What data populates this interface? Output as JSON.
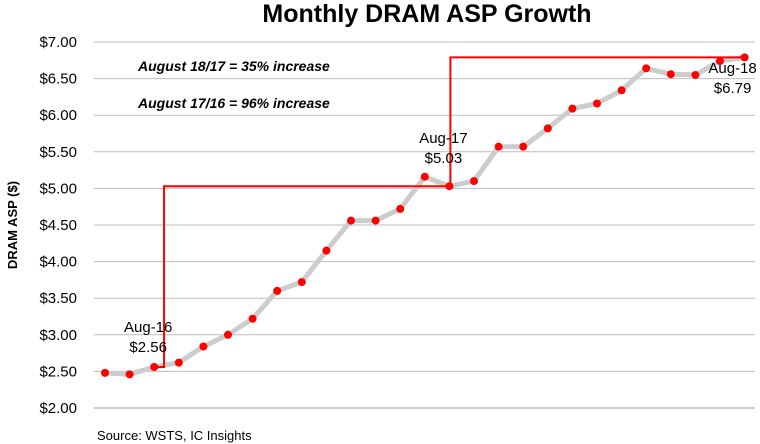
{
  "chart_data": {
    "type": "line",
    "title": "Monthly DRAM ASP Growth",
    "ylabel": "DRAM ASP ($)",
    "xlabel": "",
    "ylim": [
      2.0,
      7.0
    ],
    "yticks": [
      "$2.00",
      "$2.50",
      "$3.00",
      "$3.50",
      "$4.00",
      "$4.50",
      "$5.00",
      "$5.50",
      "$6.00",
      "$6.50",
      "$7.00"
    ],
    "grid": true,
    "series": [
      {
        "line_color": "#cccccc",
        "marker_color": "#ff0000",
        "values": [
          2.48,
          2.46,
          2.56,
          2.62,
          2.84,
          3.0,
          3.22,
          3.6,
          3.72,
          4.15,
          4.56,
          4.56,
          4.72,
          5.16,
          5.03,
          5.1,
          5.57,
          5.57,
          5.82,
          6.09,
          6.16,
          6.34,
          6.64,
          6.56,
          6.55,
          6.74,
          6.79
        ]
      }
    ],
    "data_labels": [
      {
        "index": 2,
        "name": "Aug-16",
        "value": "$2.56"
      },
      {
        "index": 14,
        "name": "Aug-17",
        "value": "$5.03"
      },
      {
        "index": 26,
        "name": "Aug-18",
        "value": "$6.79"
      }
    ],
    "annotations": [
      "August 18/17 = 35% increase",
      "August 17/16 = 96% increase"
    ],
    "step_line": {
      "color": "#ff0000",
      "points": [
        2,
        14,
        26
      ]
    },
    "source": "Source:  WSTS, IC Insights"
  }
}
